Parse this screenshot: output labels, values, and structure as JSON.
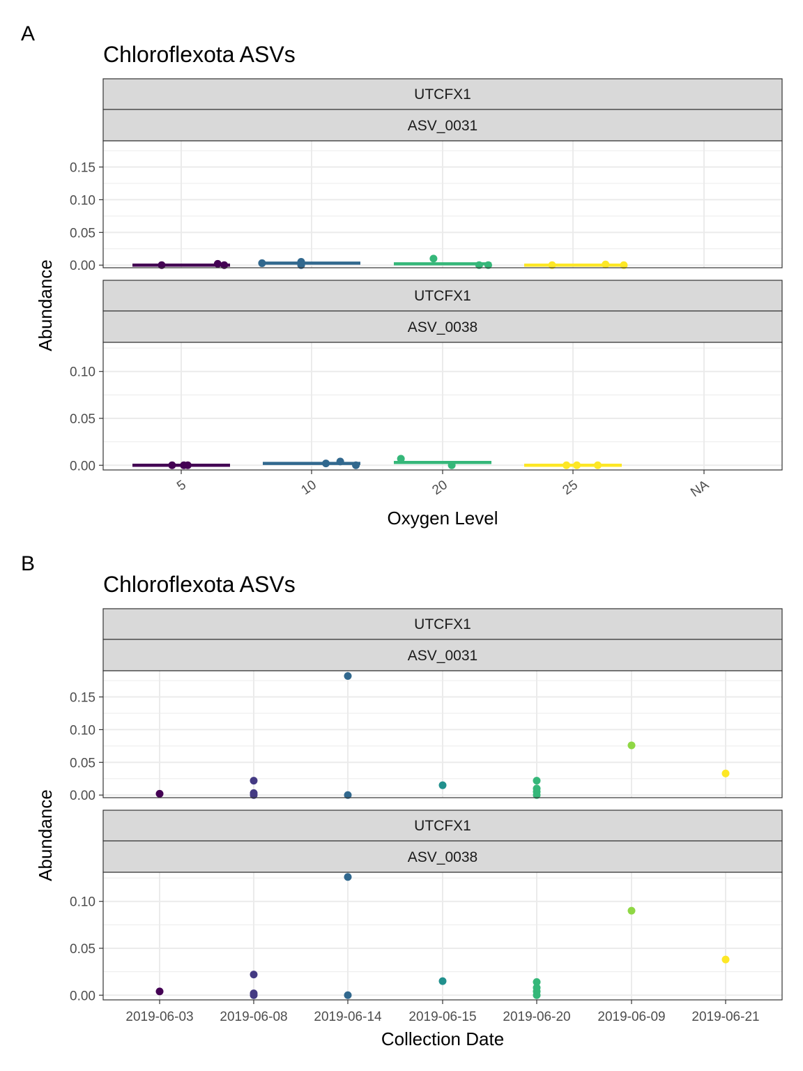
{
  "chart_data": [
    {
      "panel_tag": "A",
      "type": "scatter",
      "title": "Chloroflexota ASVs",
      "xlabel": "Oxygen Level",
      "ylabel": "Abundance",
      "x_categories": [
        "5",
        "10",
        "20",
        "25",
        "NA"
      ],
      "x_tick_rotation_deg": -35,
      "grid": true,
      "legend": "none",
      "colors": [
        "#440154",
        "#31688e",
        "#35b779",
        "#fde725"
      ],
      "facets": [
        {
          "strip_top": "UTCFX1",
          "strip_bottom": "ASV_0031",
          "ylim": [
            -0.004,
            0.19
          ],
          "y_ticks": [
            0.0,
            0.05,
            0.1,
            0.15
          ],
          "y_tick_labels": [
            "0.00",
            "0.05",
            "0.10",
            "0.15"
          ],
          "segments": [
            {
              "category": "5",
              "y": 0.0
            },
            {
              "category": "10",
              "y": 0.003
            },
            {
              "category": "20",
              "y": 0.002
            },
            {
              "category": "25",
              "y": 0.0
            }
          ],
          "points": [
            {
              "category": "5",
              "jitter": -0.15,
              "y": 0.0
            },
            {
              "category": "5",
              "jitter": 0.28,
              "y": 0.002
            },
            {
              "category": "5",
              "jitter": 0.33,
              "y": 0.0
            },
            {
              "category": "10",
              "jitter": -0.38,
              "y": 0.003
            },
            {
              "category": "10",
              "jitter": -0.08,
              "y": 0.005
            },
            {
              "category": "10",
              "jitter": -0.08,
              "y": 0.0
            },
            {
              "category": "20",
              "jitter": -0.07,
              "y": 0.01
            },
            {
              "category": "20",
              "jitter": 0.28,
              "y": 0.0
            },
            {
              "category": "20",
              "jitter": 0.35,
              "y": 0.0
            },
            {
              "category": "25",
              "jitter": -0.16,
              "y": 0.0
            },
            {
              "category": "25",
              "jitter": 0.25,
              "y": 0.001
            },
            {
              "category": "25",
              "jitter": 0.39,
              "y": 0.0
            }
          ]
        },
        {
          "strip_top": "UTCFX1",
          "strip_bottom": "ASV_0038",
          "ylim": [
            -0.005,
            0.131
          ],
          "y_ticks": [
            0.0,
            0.05,
            0.1
          ],
          "y_tick_labels": [
            "0.00",
            "0.05",
            "0.10"
          ],
          "segments": [
            {
              "category": "5",
              "y": 0.0
            },
            {
              "category": "10",
              "y": 0.002
            },
            {
              "category": "20",
              "y": 0.003
            },
            {
              "category": "25",
              "y": 0.0
            }
          ],
          "points": [
            {
              "category": "5",
              "jitter": -0.07,
              "y": 0.0
            },
            {
              "category": "5",
              "jitter": 0.02,
              "y": 0.0
            },
            {
              "category": "5",
              "jitter": 0.05,
              "y": 0.0
            },
            {
              "category": "10",
              "jitter": 0.11,
              "y": 0.002
            },
            {
              "category": "10",
              "jitter": 0.22,
              "y": 0.004
            },
            {
              "category": "10",
              "jitter": 0.34,
              "y": 0.0
            },
            {
              "category": "20",
              "jitter": -0.32,
              "y": 0.007
            },
            {
              "category": "20",
              "jitter": 0.07,
              "y": 0.0
            },
            {
              "category": "25",
              "jitter": -0.05,
              "y": 0.0
            },
            {
              "category": "25",
              "jitter": 0.03,
              "y": 0.0
            },
            {
              "category": "25",
              "jitter": 0.19,
              "y": 0.0
            }
          ]
        }
      ]
    },
    {
      "panel_tag": "B",
      "type": "scatter",
      "title": "Chloroflexota ASVs",
      "xlabel": "Collection Date",
      "ylabel": "Abundance",
      "x_categories": [
        "2019-06-03",
        "2019-06-08",
        "2019-06-14",
        "2019-06-15",
        "2019-06-20",
        "2019-06-09",
        "2019-06-21"
      ],
      "x_tick_rotation_deg": 0,
      "grid": true,
      "legend": "none",
      "colors": [
        "#440154",
        "#443a83",
        "#31688e",
        "#21908d",
        "#35b779",
        "#8fd744",
        "#fde725"
      ],
      "facets": [
        {
          "strip_top": "UTCFX1",
          "strip_bottom": "ASV_0031",
          "ylim": [
            -0.004,
            0.19
          ],
          "y_ticks": [
            0.0,
            0.05,
            0.1,
            0.15
          ],
          "y_tick_labels": [
            "0.00",
            "0.05",
            "0.10",
            "0.15"
          ],
          "segments": [],
          "points": [
            {
              "category": "2019-06-03",
              "jitter": 0,
              "y": 0.002
            },
            {
              "category": "2019-06-08",
              "jitter": 0,
              "y": 0.022
            },
            {
              "category": "2019-06-08",
              "jitter": 0,
              "y": 0.003
            },
            {
              "category": "2019-06-08",
              "jitter": 0,
              "y": 0.0
            },
            {
              "category": "2019-06-14",
              "jitter": 0,
              "y": 0.182
            },
            {
              "category": "2019-06-14",
              "jitter": 0,
              "y": 0.0
            },
            {
              "category": "2019-06-15",
              "jitter": 0,
              "y": 0.015
            },
            {
              "category": "2019-06-20",
              "jitter": 0,
              "y": 0.022
            },
            {
              "category": "2019-06-20",
              "jitter": 0,
              "y": 0.01
            },
            {
              "category": "2019-06-20",
              "jitter": 0,
              "y": 0.005
            },
            {
              "category": "2019-06-20",
              "jitter": 0,
              "y": 0.0
            },
            {
              "category": "2019-06-09",
              "jitter": 0,
              "y": 0.076
            },
            {
              "category": "2019-06-21",
              "jitter": 0,
              "y": 0.033
            }
          ]
        },
        {
          "strip_top": "UTCFX1",
          "strip_bottom": "ASV_0038",
          "ylim": [
            -0.005,
            0.131
          ],
          "y_ticks": [
            0.0,
            0.05,
            0.1
          ],
          "y_tick_labels": [
            "0.00",
            "0.05",
            "0.10"
          ],
          "segments": [],
          "points": [
            {
              "category": "2019-06-03",
              "jitter": 0,
              "y": 0.004
            },
            {
              "category": "2019-06-08",
              "jitter": 0,
              "y": 0.022
            },
            {
              "category": "2019-06-08",
              "jitter": 0,
              "y": 0.002
            },
            {
              "category": "2019-06-08",
              "jitter": 0,
              "y": 0.0
            },
            {
              "category": "2019-06-14",
              "jitter": 0,
              "y": 0.126
            },
            {
              "category": "2019-06-14",
              "jitter": 0,
              "y": 0.0
            },
            {
              "category": "2019-06-15",
              "jitter": 0,
              "y": 0.015
            },
            {
              "category": "2019-06-20",
              "jitter": 0,
              "y": 0.014
            },
            {
              "category": "2019-06-20",
              "jitter": 0,
              "y": 0.008
            },
            {
              "category": "2019-06-20",
              "jitter": 0,
              "y": 0.004
            },
            {
              "category": "2019-06-20",
              "jitter": 0,
              "y": 0.0
            },
            {
              "category": "2019-06-09",
              "jitter": 0,
              "y": 0.09
            },
            {
              "category": "2019-06-21",
              "jitter": 0,
              "y": 0.038
            }
          ]
        }
      ]
    }
  ]
}
